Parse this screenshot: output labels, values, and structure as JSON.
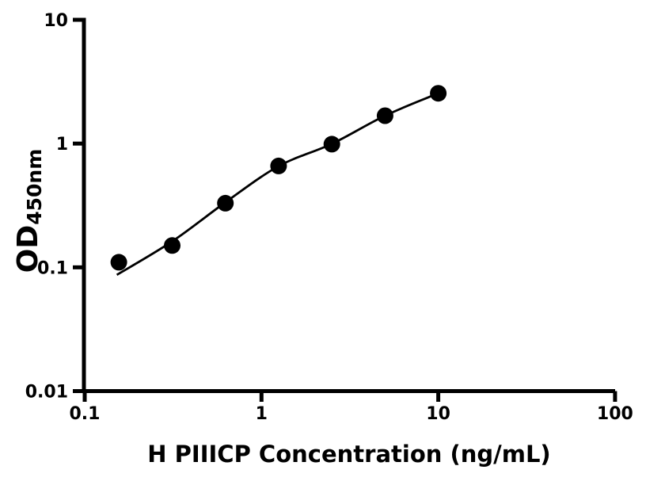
{
  "chart_data": {
    "type": "scatter",
    "title": "",
    "xlabel": "H PIIICP Concentration (ng/mL)",
    "ylabel_main": "OD",
    "ylabel_sub": "450nm",
    "x_scale": "log",
    "y_scale": "log",
    "xlim": [
      0.1,
      100
    ],
    "ylim": [
      0.01,
      10
    ],
    "x_ticks": {
      "values": [
        0.1,
        1,
        10,
        100
      ],
      "labels": [
        "0.1",
        "1",
        "10",
        "100"
      ]
    },
    "y_ticks": {
      "values": [
        0.01,
        0.1,
        1,
        10
      ],
      "labels": [
        "0.01",
        "0.1",
        "1",
        "10"
      ]
    },
    "grid": false,
    "legend": null,
    "background": "#ffffff",
    "axis_color": "#000000",
    "series": [
      {
        "name": "standard-curve-points",
        "type": "scatter",
        "marker": "circle",
        "color": "#000000",
        "x": [
          0.156,
          0.3125,
          0.625,
          1.25,
          2.5,
          5,
          10
        ],
        "y": [
          0.11,
          0.15,
          0.33,
          0.66,
          0.99,
          1.68,
          2.55
        ]
      },
      {
        "name": "fit-curve",
        "type": "line",
        "color": "#000000",
        "x": [
          0.152,
          0.3125,
          0.625,
          1.25,
          2.5,
          5,
          10
        ],
        "y": [
          0.087,
          0.162,
          0.335,
          0.657,
          0.995,
          1.68,
          2.55
        ]
      }
    ]
  }
}
